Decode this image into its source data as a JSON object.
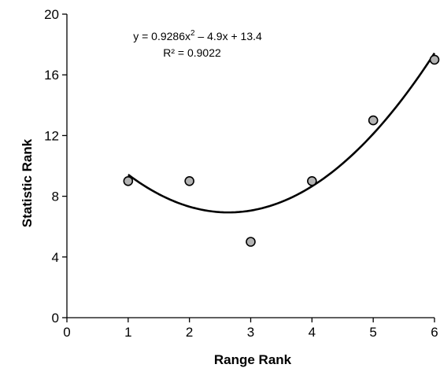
{
  "chart_data": {
    "type": "scatter",
    "title": "",
    "xlabel": "Range Rank",
    "ylabel": "Statistic Rank",
    "xlim": [
      0,
      6
    ],
    "ylim": [
      0,
      20
    ],
    "x_ticks": [
      0,
      1,
      2,
      3,
      4,
      5,
      6
    ],
    "y_ticks": [
      0,
      4,
      8,
      12,
      16,
      20
    ],
    "grid": false,
    "series": [
      {
        "x": [
          1,
          2,
          3,
          4,
          5,
          6
        ],
        "y": [
          9,
          9,
          5,
          9,
          13,
          17
        ],
        "marker": "circle",
        "marker_fill": "#b3b3b3",
        "marker_edge": "#000000"
      }
    ],
    "trendline": {
      "type": "polynomial",
      "order": 2,
      "coefficients": [
        0.9286,
        -4.9,
        13.4
      ],
      "x_range": [
        1,
        6
      ],
      "color": "#000000"
    },
    "annotations": {
      "equation_prefix": "y = 0.9286x",
      "equation_exponent": "2",
      "equation_suffix": " – 4.9x + 13.4",
      "r_squared": "R² = 0.9022"
    }
  }
}
